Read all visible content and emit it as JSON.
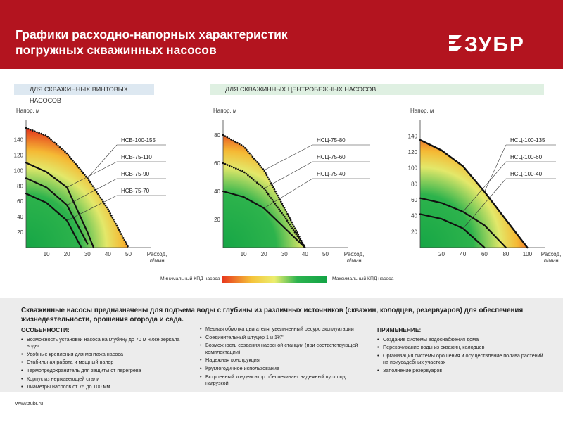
{
  "header": {
    "title_line1": "Графики расходно-напорных характеристик",
    "title_line2": "погружных скважинных насосов",
    "brand": "ЗУБР"
  },
  "sections": {
    "screw": "ДЛЯ СКВАЖИННЫХ ВИНТОВЫХ НАСОСОВ",
    "centrifugal": "ДЛЯ СКВАЖИННЫХ ЦЕНТРОБЕЖНЫХ НАСОСОВ"
  },
  "legend": {
    "min_label": "Минимальный КПД насоса",
    "max_label": "Максимальный КПД насоса",
    "colors": [
      "#e8381d",
      "#f5c33a",
      "#ecee6f",
      "#2cb34f",
      "#13a445"
    ]
  },
  "chart_data": [
    {
      "type": "line",
      "ylabel": "Напор, м",
      "xlabel": "Расход, л/мин",
      "xticks": [
        "10",
        "20",
        "30",
        "40",
        "50"
      ],
      "yticks": [
        "20",
        "40",
        "60",
        "80",
        "100",
        "120",
        "140"
      ],
      "xlim": [
        0,
        55
      ],
      "ylim": [
        0,
        155
      ],
      "series": [
        {
          "name": "НСВ-100-155",
          "x": [
            0,
            10,
            20,
            30,
            40,
            50
          ],
          "y": [
            155,
            145,
            122,
            90,
            50,
            0
          ],
          "style": "dotted"
        },
        {
          "name": "НСВ-75-110",
          "x": [
            0,
            10,
            20,
            30,
            33
          ],
          "y": [
            110,
            98,
            78,
            20,
            0
          ],
          "style": "solid"
        },
        {
          "name": "НСВ-75-90",
          "x": [
            0,
            10,
            20,
            30
          ],
          "y": [
            90,
            78,
            55,
            5
          ],
          "style": "solid"
        },
        {
          "name": "НСВ-75-70",
          "x": [
            0,
            10,
            20,
            27
          ],
          "y": [
            70,
            58,
            35,
            0
          ],
          "style": "solid"
        }
      ]
    },
    {
      "type": "line",
      "ylabel": "Напор, м",
      "xlabel": "Расход, л/мин",
      "xticks": [
        "10",
        "20",
        "30",
        "40",
        "50"
      ],
      "yticks": [
        "20",
        "40",
        "60",
        "80"
      ],
      "xlim": [
        0,
        55
      ],
      "ylim": [
        0,
        85
      ],
      "series": [
        {
          "name": "НСЦ-75-80",
          "x": [
            0,
            10,
            20,
            30,
            40
          ],
          "y": [
            80,
            72,
            55,
            28,
            0
          ],
          "style": "dotted"
        },
        {
          "name": "НСЦ-75-60",
          "x": [
            0,
            10,
            20,
            30,
            40
          ],
          "y": [
            60,
            54,
            42,
            22,
            0
          ],
          "style": "dotted"
        },
        {
          "name": "НСЦ-75-40",
          "x": [
            0,
            10,
            20,
            30,
            40
          ],
          "y": [
            40,
            36,
            28,
            14,
            0
          ],
          "style": "solid"
        }
      ]
    },
    {
      "type": "line",
      "ylabel": "Напор, м",
      "xlabel": "Расход, л/мин",
      "xticks": [
        "20",
        "40",
        "60",
        "80",
        "100"
      ],
      "yticks": [
        "20",
        "40",
        "60",
        "80",
        "100",
        "120",
        "140"
      ],
      "xlim": [
        0,
        105
      ],
      "ylim": [
        0,
        150
      ],
      "series": [
        {
          "name": "НСЦ-100-135",
          "x": [
            0,
            20,
            40,
            60,
            80,
            100
          ],
          "y": [
            135,
            122,
            102,
            70,
            35,
            0
          ],
          "style": "solid"
        },
        {
          "name": "НСЦ-100-60",
          "x": [
            0,
            20,
            40,
            60,
            80
          ],
          "y": [
            62,
            56,
            45,
            28,
            0
          ],
          "style": "solid"
        },
        {
          "name": "НСЦ-100-40",
          "x": [
            0,
            20,
            40,
            60
          ],
          "y": [
            42,
            36,
            24,
            0
          ],
          "style": "solid"
        }
      ]
    }
  ],
  "info": {
    "title": "Скважинные насосы предназначены для подъема воды с глубины из различных источников (скважин, колодцев, резервуаров) для обеспечения жизнедеятельности, орошения огорода и сада.",
    "features_title": "ОСОБЕННОСТИ:",
    "features": [
      "Возможность установки насоса на глубину до 70 м ниже зеркала воды",
      "Удобные крепления для монтажа насоса",
      "Стабильная работа и мощный напор",
      "Термопредохранитель для защиты от перегрева",
      "Корпус из нержавеющей стали",
      "Диаметры насосов от 75 до 100 мм"
    ],
    "features2": [
      "Медная обмотка двигателя, увеличенный ресурс эксплуатации",
      "Соединительный штуцер 1 и 1¼\"",
      "Возможность создания насосной станции (при соответствующей комплектации)",
      "Надежная конструкция",
      "Круглогодичное использование",
      "Встроенный конденсатор обеспечивает надежный пуск под нагрузкой"
    ],
    "usage_title": "ПРИМЕНЕНИЕ:",
    "usage": [
      "Создание системы водоснабжения дома",
      "Перекачивание воды из скважин, колодцев",
      "Организация системы орошения и осуществление полива растений на приусадебных участках",
      "Заполнение резервуаров"
    ]
  },
  "footer": {
    "url": "www.zubr.ru"
  }
}
